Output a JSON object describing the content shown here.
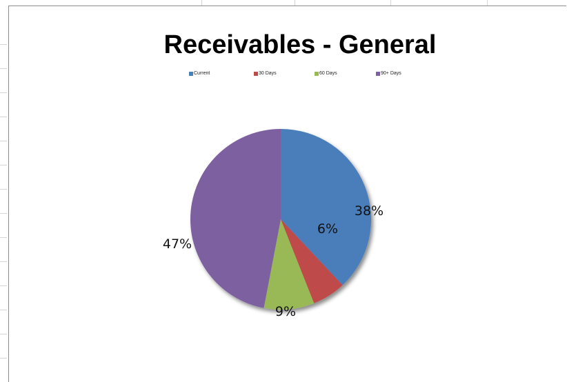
{
  "chart_data": {
    "type": "pie",
    "title": "Receivables - General",
    "legend_position": "top",
    "categories": [
      "Current",
      "30 Days",
      "60 Days",
      "90+ Days"
    ],
    "values": [
      38,
      6,
      9,
      47
    ],
    "labels": [
      "38%",
      "6%",
      "9%",
      "47%"
    ],
    "colors": [
      "#4a7ebb",
      "#be4b48",
      "#98b954",
      "#7d60a0"
    ]
  }
}
